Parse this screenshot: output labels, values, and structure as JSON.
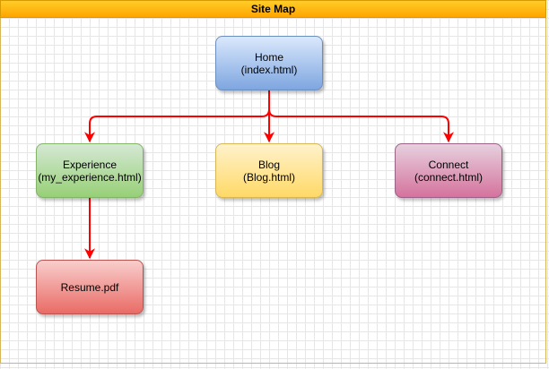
{
  "diagram": {
    "title": "Site Map",
    "accent_color": "#ff0000",
    "nodes": {
      "home": {
        "label": "Home",
        "file": "(index.html)"
      },
      "experience": {
        "label": "Experience",
        "file": "(my_experience.html)"
      },
      "blog": {
        "label": "Blog",
        "file": "(Blog.html)"
      },
      "connect": {
        "label": "Connect",
        "file": "(connect.html)"
      },
      "resume": {
        "label": "Resume.pdf"
      }
    },
    "edges": [
      {
        "from": "Home",
        "to": "Experience"
      },
      {
        "from": "Home",
        "to": "Blog"
      },
      {
        "from": "Home",
        "to": "Connect"
      },
      {
        "from": "Experience",
        "to": "Resume.pdf"
      }
    ]
  }
}
